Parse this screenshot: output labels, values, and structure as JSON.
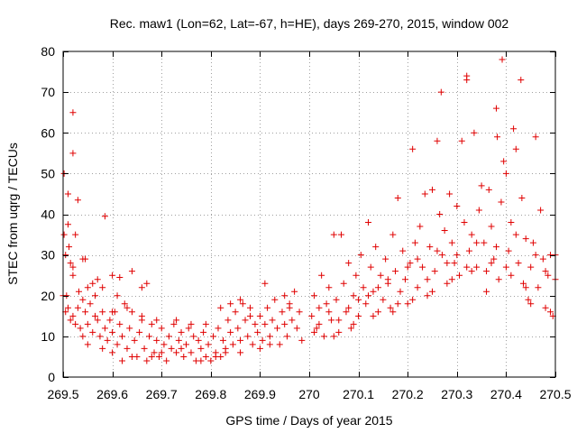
{
  "chart_data": {
    "type": "scatter",
    "title": "Rec. maw1 (Lon=62, Lat=-67, h=HE), days 269-270, 2015, window 002",
    "xlabel": "GPS time / Days of year 2015",
    "ylabel": "STEC from uqrg / TECUs",
    "xlim": [
      269.5,
      270.5
    ],
    "ylim": [
      0,
      80
    ],
    "xticks": [
      269.5,
      269.6,
      269.7,
      269.8,
      269.9,
      270,
      270.1,
      270.2,
      270.3,
      270.4,
      270.5
    ],
    "xtick_labels": [
      "269.5",
      "269.6",
      "269.7",
      "269.8",
      "269.9",
      "270",
      "270.1",
      "270.2",
      "270.3",
      "270.4",
      "270.5"
    ],
    "yticks": [
      0,
      10,
      20,
      30,
      40,
      50,
      60,
      70,
      80
    ],
    "ytick_labels": [
      "0",
      "10",
      "20",
      "30",
      "40",
      "50",
      "60",
      "70",
      "80"
    ],
    "grid": true,
    "marker": "+",
    "color": "#e00000",
    "series": [
      {
        "name": "STEC",
        "points": [
          [
            269.502,
            50
          ],
          [
            269.502,
            35
          ],
          [
            269.505,
            30
          ],
          [
            269.507,
            20
          ],
          [
            269.51,
            45
          ],
          [
            269.51,
            37.5
          ],
          [
            269.512,
            32
          ],
          [
            269.515,
            28
          ],
          [
            269.52,
            65
          ],
          [
            269.52,
            55
          ],
          [
            269.52,
            27
          ],
          [
            269.52,
            25
          ],
          [
            269.525,
            35
          ],
          [
            269.53,
            43.5
          ],
          [
            269.532,
            21
          ],
          [
            269.54,
            29
          ],
          [
            269.545,
            29
          ],
          [
            269.55,
            22
          ],
          [
            269.56,
            23
          ],
          [
            269.565,
            20
          ],
          [
            269.57,
            24
          ],
          [
            269.58,
            22
          ],
          [
            269.585,
            39.5
          ],
          [
            269.6,
            25
          ],
          [
            269.615,
            24.5
          ],
          [
            269.64,
            26
          ],
          [
            269.66,
            22
          ],
          [
            269.67,
            23
          ],
          [
            269.5,
            20
          ],
          [
            269.505,
            16
          ],
          [
            269.51,
            17
          ],
          [
            269.515,
            14
          ],
          [
            269.52,
            15
          ],
          [
            269.525,
            13
          ],
          [
            269.53,
            17
          ],
          [
            269.535,
            12
          ],
          [
            269.54,
            19
          ],
          [
            269.545,
            16
          ],
          [
            269.55,
            13
          ],
          [
            269.555,
            18
          ],
          [
            269.56,
            11
          ],
          [
            269.565,
            15
          ],
          [
            269.57,
            14
          ],
          [
            269.575,
            10
          ],
          [
            269.58,
            16
          ],
          [
            269.585,
            12
          ],
          [
            269.59,
            9
          ],
          [
            269.595,
            14
          ],
          [
            269.6,
            11
          ],
          [
            269.605,
            16
          ],
          [
            269.61,
            8
          ],
          [
            269.615,
            13
          ],
          [
            269.62,
            10
          ],
          [
            269.625,
            18
          ],
          [
            269.63,
            7
          ],
          [
            269.635,
            12
          ],
          [
            269.64,
            16
          ],
          [
            269.645,
            9
          ],
          [
            269.65,
            5
          ],
          [
            269.655,
            11
          ],
          [
            269.66,
            14
          ],
          [
            269.665,
            7
          ],
          [
            269.67,
            4
          ],
          [
            269.675,
            10
          ],
          [
            269.68,
            13
          ],
          [
            269.685,
            6
          ],
          [
            269.69,
            9
          ],
          [
            269.695,
            5
          ],
          [
            269.7,
            12
          ],
          [
            269.705,
            8
          ],
          [
            269.71,
            4
          ],
          [
            269.715,
            10
          ],
          [
            269.72,
            7
          ],
          [
            269.725,
            13
          ],
          [
            269.73,
            6
          ],
          [
            269.735,
            9
          ],
          [
            269.74,
            11
          ],
          [
            269.745,
            5
          ],
          [
            269.75,
            8
          ],
          [
            269.755,
            12
          ],
          [
            269.76,
            6
          ],
          [
            269.765,
            10
          ],
          [
            269.77,
            4
          ],
          [
            269.775,
            9
          ],
          [
            269.78,
            7
          ],
          [
            269.785,
            11
          ],
          [
            269.79,
            5
          ],
          [
            269.795,
            8
          ],
          [
            269.8,
            4
          ],
          [
            269.805,
            10
          ],
          [
            269.81,
            6
          ],
          [
            269.815,
            12
          ],
          [
            269.82,
            5
          ],
          [
            269.825,
            9
          ],
          [
            269.83,
            7
          ],
          [
            269.835,
            14
          ],
          [
            269.84,
            11
          ],
          [
            269.845,
            8
          ],
          [
            269.85,
            16
          ],
          [
            269.855,
            12
          ],
          [
            269.86,
            9
          ],
          [
            269.865,
            18
          ],
          [
            269.87,
            14
          ],
          [
            269.875,
            10
          ],
          [
            269.88,
            17
          ],
          [
            269.885,
            8
          ],
          [
            269.89,
            13
          ],
          [
            269.895,
            11
          ],
          [
            269.9,
            15
          ],
          [
            269.905,
            9
          ],
          [
            269.91,
            13
          ],
          [
            269.915,
            17
          ],
          [
            269.92,
            10
          ],
          [
            269.925,
            14
          ],
          [
            269.93,
            19
          ],
          [
            269.935,
            12
          ],
          [
            269.94,
            8
          ],
          [
            269.945,
            16
          ],
          [
            269.95,
            13
          ],
          [
            269.955,
            10
          ],
          [
            269.96,
            18
          ],
          [
            269.965,
            14
          ],
          [
            269.97,
            21
          ],
          [
            269.975,
            12
          ],
          [
            269.98,
            16
          ],
          [
            269.985,
            9
          ],
          [
            269.73,
            14
          ],
          [
            269.76,
            13
          ],
          [
            269.79,
            13
          ],
          [
            269.82,
            17
          ],
          [
            269.84,
            18
          ],
          [
            269.86,
            19
          ],
          [
            269.88,
            15
          ],
          [
            269.91,
            23
          ],
          [
            269.95,
            20
          ],
          [
            269.96,
            17
          ],
          [
            269.62,
            4
          ],
          [
            269.68,
            5
          ],
          [
            269.7,
            6
          ],
          [
            269.74,
            7
          ],
          [
            269.78,
            4
          ],
          [
            269.81,
            5
          ],
          [
            269.83,
            6
          ],
          [
            269.86,
            6
          ],
          [
            269.9,
            7
          ],
          [
            269.92,
            8
          ],
          [
            269.6,
            16
          ],
          [
            269.61,
            20
          ],
          [
            269.63,
            17
          ],
          [
            269.66,
            15
          ],
          [
            269.69,
            14
          ],
          [
            269.54,
            10
          ],
          [
            269.55,
            8
          ],
          [
            269.58,
            7
          ],
          [
            269.6,
            6
          ],
          [
            269.64,
            5
          ],
          [
            270.005,
            15
          ],
          [
            270.01,
            20
          ],
          [
            270.015,
            12
          ],
          [
            270.02,
            17
          ],
          [
            270.025,
            25
          ],
          [
            270.03,
            10
          ],
          [
            270.035,
            18
          ],
          [
            270.04,
            22
          ],
          [
            270.045,
            14
          ],
          [
            270.05,
            35
          ],
          [
            270.055,
            19
          ],
          [
            270.06,
            11
          ],
          [
            270.065,
            35
          ],
          [
            270.07,
            23
          ],
          [
            270.075,
            16
          ],
          [
            270.08,
            28
          ],
          [
            270.085,
            12
          ],
          [
            270.09,
            20
          ],
          [
            270.095,
            25
          ],
          [
            270.1,
            15
          ],
          [
            270.105,
            30
          ],
          [
            270.11,
            22
          ],
          [
            270.115,
            18
          ],
          [
            270.12,
            38
          ],
          [
            270.125,
            27
          ],
          [
            270.13,
            21
          ],
          [
            270.135,
            32
          ],
          [
            270.14,
            16
          ],
          [
            270.145,
            25
          ],
          [
            270.15,
            19
          ],
          [
            270.155,
            29
          ],
          [
            270.16,
            23
          ],
          [
            270.165,
            17
          ],
          [
            270.17,
            35
          ],
          [
            270.175,
            26
          ],
          [
            270.18,
            44
          ],
          [
            270.185,
            21
          ],
          [
            270.19,
            31
          ],
          [
            270.195,
            24
          ],
          [
            270.2,
            18
          ],
          [
            270.205,
            28
          ],
          [
            270.21,
            56
          ],
          [
            270.215,
            33
          ],
          [
            270.22,
            22
          ],
          [
            270.225,
            37
          ],
          [
            270.23,
            27
          ],
          [
            270.235,
            45
          ],
          [
            270.24,
            20
          ],
          [
            270.245,
            32
          ],
          [
            270.25,
            46
          ],
          [
            270.255,
            26
          ],
          [
            270.26,
            58
          ],
          [
            270.265,
            40
          ],
          [
            270.268,
            70
          ],
          [
            270.27,
            30
          ],
          [
            270.275,
            36
          ],
          [
            270.28,
            23
          ],
          [
            270.285,
            45
          ],
          [
            270.29,
            33
          ],
          [
            270.295,
            28
          ],
          [
            270.3,
            42
          ],
          [
            270.305,
            25
          ],
          [
            270.31,
            58
          ],
          [
            270.315,
            38
          ],
          [
            270.32,
            73
          ],
          [
            270.32,
            74
          ],
          [
            270.325,
            31
          ],
          [
            270.33,
            35
          ],
          [
            270.335,
            60
          ],
          [
            270.34,
            27
          ],
          [
            270.345,
            41
          ],
          [
            270.35,
            47
          ],
          [
            270.355,
            33
          ],
          [
            270.36,
            21
          ],
          [
            270.365,
            46
          ],
          [
            270.37,
            37
          ],
          [
            270.375,
            29
          ],
          [
            270.38,
            66
          ],
          [
            270.382,
            59
          ],
          [
            270.385,
            24
          ],
          [
            270.39,
            43
          ],
          [
            270.392,
            78
          ],
          [
            270.395,
            53
          ],
          [
            270.4,
            50
          ],
          [
            270.405,
            31
          ],
          [
            270.41,
            38
          ],
          [
            270.415,
            61
          ],
          [
            270.42,
            56
          ],
          [
            270.425,
            28
          ],
          [
            270.43,
            73
          ],
          [
            270.432,
            44
          ],
          [
            270.435,
            23
          ],
          [
            270.44,
            34
          ],
          [
            270.445,
            19
          ],
          [
            270.45,
            27
          ],
          [
            270.455,
            33
          ],
          [
            270.46,
            59
          ],
          [
            270.465,
            22
          ],
          [
            270.47,
            41
          ],
          [
            270.475,
            29
          ],
          [
            270.48,
            17
          ],
          [
            270.485,
            25
          ],
          [
            270.49,
            30
          ],
          [
            270.495,
            15
          ],
          [
            270.5,
            30
          ],
          [
            270.02,
            13
          ],
          [
            270.04,
            16
          ],
          [
            270.06,
            14
          ],
          [
            270.08,
            17
          ],
          [
            270.1,
            19
          ],
          [
            270.12,
            20
          ],
          [
            270.14,
            22
          ],
          [
            270.16,
            24
          ],
          [
            270.18,
            18
          ],
          [
            270.2,
            27
          ],
          [
            270.22,
            29
          ],
          [
            270.24,
            24
          ],
          [
            270.26,
            31
          ],
          [
            270.28,
            28
          ],
          [
            270.3,
            30
          ],
          [
            270.32,
            27
          ],
          [
            270.34,
            33
          ],
          [
            270.36,
            26
          ],
          [
            270.38,
            32
          ],
          [
            270.4,
            27
          ],
          [
            270.42,
            35
          ],
          [
            270.44,
            22
          ],
          [
            270.46,
            30
          ],
          [
            270.48,
            26
          ],
          [
            270.5,
            24
          ],
          [
            270.01,
            11
          ],
          [
            270.05,
            10
          ],
          [
            270.09,
            13
          ],
          [
            270.13,
            15
          ],
          [
            270.17,
            16
          ],
          [
            270.21,
            19
          ],
          [
            270.25,
            21
          ],
          [
            270.29,
            24
          ],
          [
            270.33,
            26
          ],
          [
            270.37,
            28
          ],
          [
            270.41,
            25
          ],
          [
            270.45,
            18
          ],
          [
            270.49,
            16
          ]
        ]
      }
    ]
  }
}
